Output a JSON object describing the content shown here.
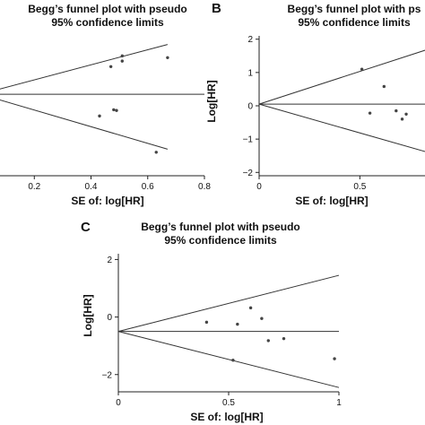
{
  "chart_data": [
    {
      "panel": "",
      "type": "scatter",
      "title_lines": [
        "Begg’s funnel plot with pseudo",
        "95% confidence limits"
      ],
      "xlabel": "SE of: log[HR]",
      "ylabel": "",
      "xlim": [
        0.06,
        0.8
      ],
      "ylim": [
        -2.25,
        1.8
      ],
      "x_ticks": [
        0.2,
        0.4,
        0.6,
        0.8
      ],
      "x_tick_labels": [
        "0.2",
        "0.4",
        "0.6",
        "0.8"
      ],
      "y_ticks": [],
      "y_tick_labels": [],
      "pooled_estimate": 0.11,
      "limit_lines": [
        {
          "from": [
            0.06,
            0.22
          ],
          "to": [
            0.67,
            1.55
          ]
        },
        {
          "from": [
            0.06,
            -0.01
          ],
          "to": [
            0.67,
            -1.48
          ]
        }
      ],
      "points": [
        {
          "x": 0.47,
          "y": 0.91
        },
        {
          "x": 0.51,
          "y": 1.07
        },
        {
          "x": 0.51,
          "y": 1.22
        },
        {
          "x": 0.67,
          "y": 1.17
        },
        {
          "x": 0.43,
          "y": -0.52
        },
        {
          "x": 0.48,
          "y": -0.34
        },
        {
          "x": 0.49,
          "y": -0.36
        },
        {
          "x": 0.63,
          "y": -1.57
        }
      ]
    },
    {
      "panel": "B",
      "type": "scatter",
      "title_lines": [
        "Begg’s funnel plot with ps",
        "95% confidence limits"
      ],
      "xlabel": "SE of: log[HR]",
      "ylabel": "Log[HR]",
      "xlim": [
        0,
        0.85
      ],
      "ylim": [
        -2.1,
        2.1
      ],
      "x_ticks": [
        0,
        0.5
      ],
      "x_tick_labels": [
        "0",
        "0.5"
      ],
      "y_ticks": [
        2,
        1,
        0,
        -1,
        -2
      ],
      "y_tick_labels": [
        "2",
        "1",
        "0",
        "−1",
        "−2"
      ],
      "pooled_estimate": 0.05,
      "limit_lines": [
        {
          "from": [
            0,
            0.05
          ],
          "to": [
            0.85,
            1.72
          ]
        },
        {
          "from": [
            0,
            0.05
          ],
          "to": [
            0.85,
            -1.42
          ]
        }
      ],
      "points": [
        {
          "x": 0.51,
          "y": 1.1
        },
        {
          "x": 0.62,
          "y": 0.58
        },
        {
          "x": 0.55,
          "y": -0.22
        },
        {
          "x": 0.68,
          "y": -0.15
        },
        {
          "x": 0.71,
          "y": -0.4
        },
        {
          "x": 0.73,
          "y": -0.25
        }
      ]
    },
    {
      "panel": "C",
      "type": "scatter",
      "title_lines": [
        "Begg’s funnel plot with pseudo",
        "95% confidence limits"
      ],
      "xlabel": "SE of: log[HR]",
      "ylabel": "Log[HR]",
      "xlim": [
        0,
        1.0
      ],
      "ylim": [
        -2.6,
        2.2
      ],
      "x_ticks": [
        0,
        0.5,
        1
      ],
      "x_tick_labels": [
        "0",
        "0.5",
        "1"
      ],
      "y_ticks": [
        2,
        0,
        -2
      ],
      "y_tick_labels": [
        "2",
        "0",
        "−2"
      ],
      "pooled_estimate": -0.5,
      "limit_lines": [
        {
          "from": [
            0,
            -0.5
          ],
          "to": [
            1.0,
            1.45
          ]
        },
        {
          "from": [
            0,
            -0.5
          ],
          "to": [
            1.0,
            -2.45
          ]
        }
      ],
      "points": [
        {
          "x": 0.4,
          "y": -0.18
        },
        {
          "x": 0.54,
          "y": -0.25
        },
        {
          "x": 0.6,
          "y": 0.32
        },
        {
          "x": 0.65,
          "y": -0.05
        },
        {
          "x": 0.68,
          "y": -0.82
        },
        {
          "x": 0.75,
          "y": -0.75
        },
        {
          "x": 0.52,
          "y": -1.5
        },
        {
          "x": 0.98,
          "y": -1.45
        }
      ]
    }
  ]
}
